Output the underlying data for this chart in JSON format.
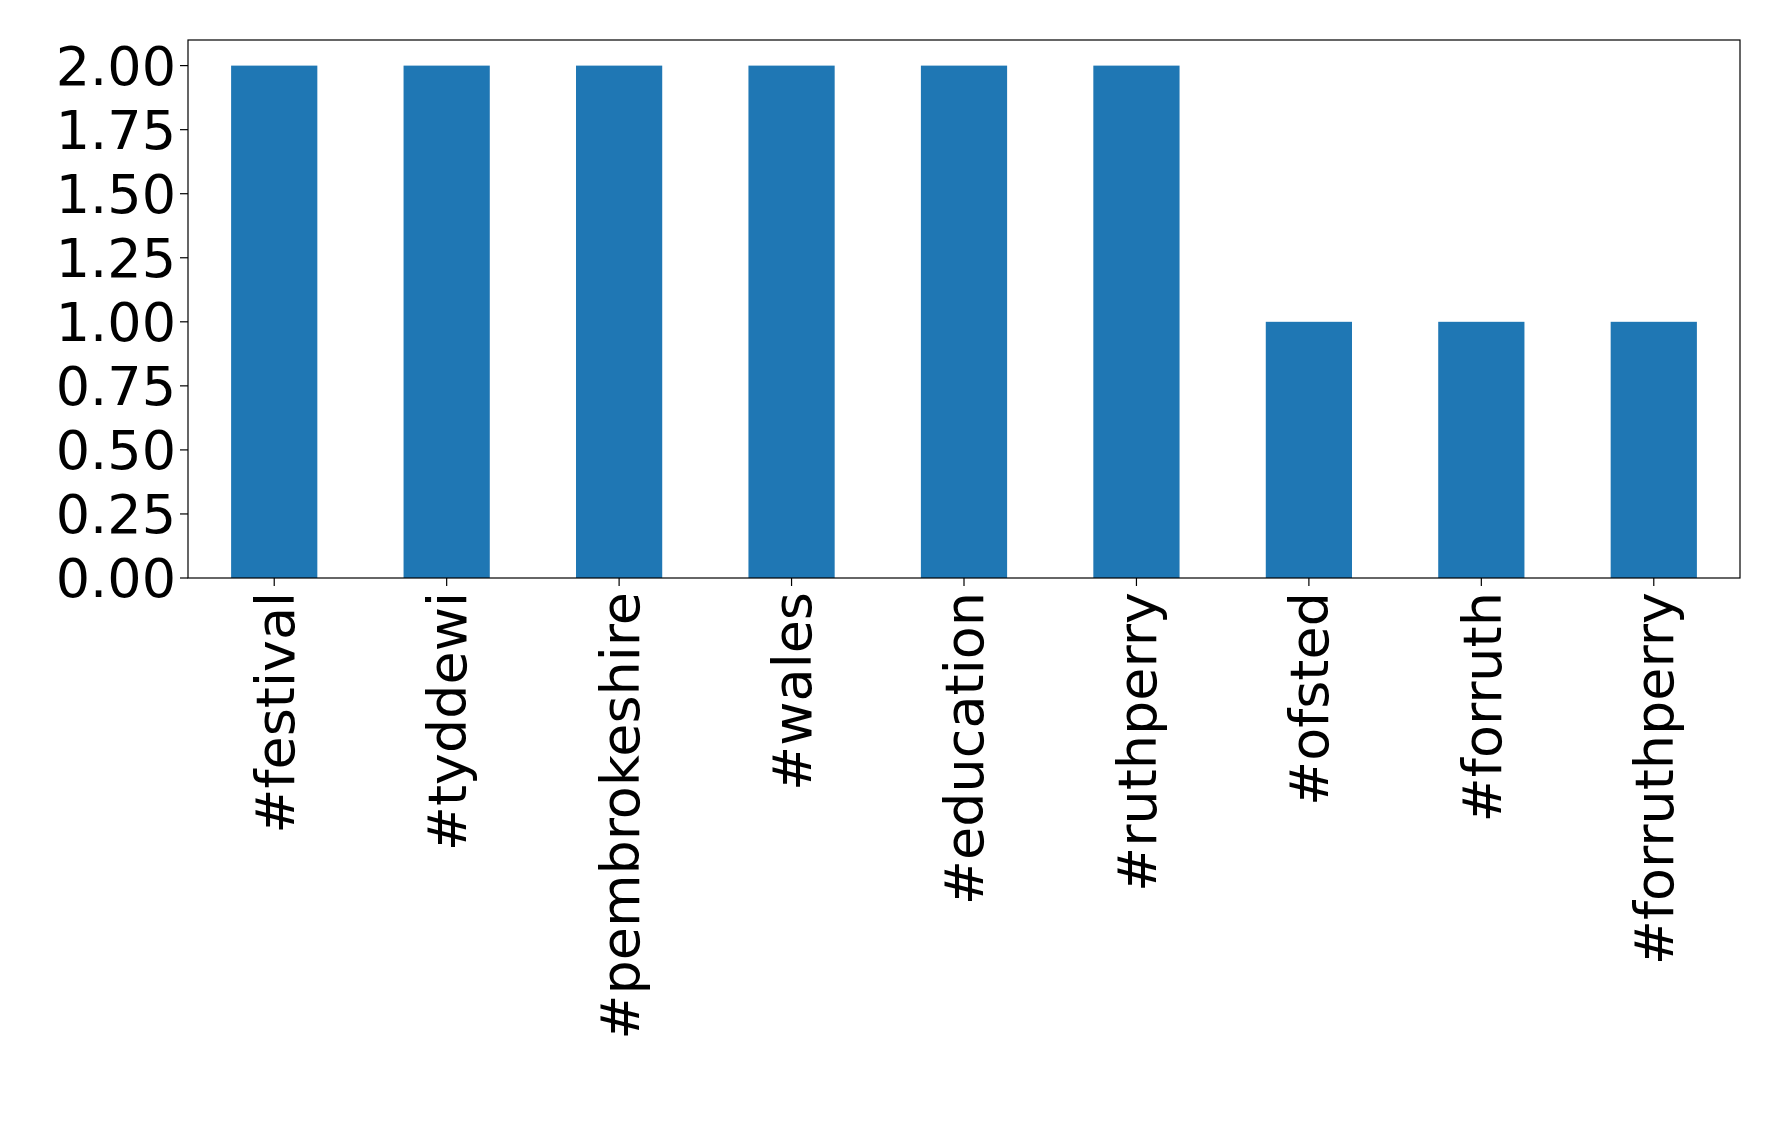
{
  "chart_data": {
    "type": "bar",
    "categories": [
      "#festival",
      "#tyddewi",
      "#pembrokeshire",
      "#wales",
      "#education",
      "#ruthperry",
      "#ofsted",
      "#forruth",
      "#forruthperry"
    ],
    "values": [
      2,
      2,
      2,
      2,
      2,
      2,
      1,
      1,
      1
    ],
    "color": "#1f77b4",
    "ylim": [
      0,
      2.1
    ],
    "yticks": [
      {
        "value": 0,
        "label": "0.00"
      },
      {
        "value": 0.25,
        "label": "0.25"
      },
      {
        "value": 0.5,
        "label": "0.50"
      },
      {
        "value": 0.75,
        "label": "0.75"
      },
      {
        "value": 1,
        "label": "1.00"
      },
      {
        "value": 1.25,
        "label": "1.25"
      },
      {
        "value": 1.5,
        "label": "1.50"
      },
      {
        "value": 1.75,
        "label": "1.75"
      },
      {
        "value": 2,
        "label": "2.00"
      }
    ],
    "grid": false
  }
}
